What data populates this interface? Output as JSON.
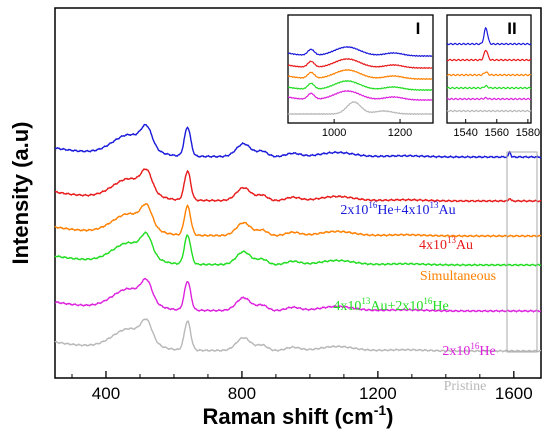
{
  "chart_data": [
    {
      "type": "line",
      "xlabel": "Raman shift (cm",
      "xlabel_sup": "-1",
      "xlabel_end": ")",
      "ylabel": "Intensity (a.u)",
      "xlim": [
        250,
        1680
      ],
      "xticks": [
        400,
        800,
        1200,
        1600
      ],
      "series": [
        {
          "name": "2x10",
          "label": [
            {
              "t": "2x10"
            },
            {
              "t": "16",
              "sup": true
            },
            {
              "t": "He+4x10"
            },
            {
              "t": "13",
              "sup": true
            },
            {
              "t": "Au"
            }
          ],
          "color": "#1a1adb",
          "offset": 0
        },
        {
          "name": "4x10",
          "label": [
            {
              "t": "4x10"
            },
            {
              "t": "13",
              "sup": true
            },
            {
              "t": "Au"
            }
          ],
          "color": "#e81a1a",
          "offset": 1
        },
        {
          "name": "Simultaneous",
          "label": [
            {
              "t": "Simultaneous"
            }
          ],
          "color": "#ff8000",
          "offset": 2
        },
        {
          "name": "4x10",
          "label": [
            {
              "t": "4x10"
            },
            {
              "t": "13",
              "sup": true
            },
            {
              "t": "Au+2x10"
            },
            {
              "t": "16",
              "sup": true
            },
            {
              "t": "He"
            }
          ],
          "color": "#22dd22",
          "offset": 3
        },
        {
          "name": "2x10",
          "label": [
            {
              "t": "2x10"
            },
            {
              "t": "16",
              "sup": true
            },
            {
              "t": "He"
            }
          ],
          "color": "#dd22dd",
          "offset": 4
        },
        {
          "name": "Pristine",
          "label": [
            {
              "t": "Pristine"
            }
          ],
          "color": "#b8b8b8",
          "offset": 5
        }
      ],
      "peaks": [
        {
          "x": 470,
          "a": 2.0,
          "w": 70
        },
        {
          "x": 520,
          "a": 1.8,
          "w": 22
        },
        {
          "x": 640,
          "a": 2.9,
          "w": 13
        },
        {
          "x": 805,
          "a": 1.3,
          "w": 30
        },
        {
          "x": 860,
          "a": 0.55,
          "w": 22
        },
        {
          "x": 950,
          "a": 0.35,
          "w": 30
        },
        {
          "x": 1080,
          "a": 0.45,
          "w": 70
        },
        {
          "x": 1280,
          "a": 0.12,
          "w": 80
        }
      ]
    },
    {
      "type": "line",
      "inset": "I",
      "xlim": [
        860,
        1300
      ],
      "xticks": [
        1000,
        1200
      ]
    },
    {
      "type": "line",
      "inset": "II",
      "xlim": [
        1528,
        1582
      ],
      "xticks": [
        1540,
        1560,
        1580
      ]
    }
  ]
}
